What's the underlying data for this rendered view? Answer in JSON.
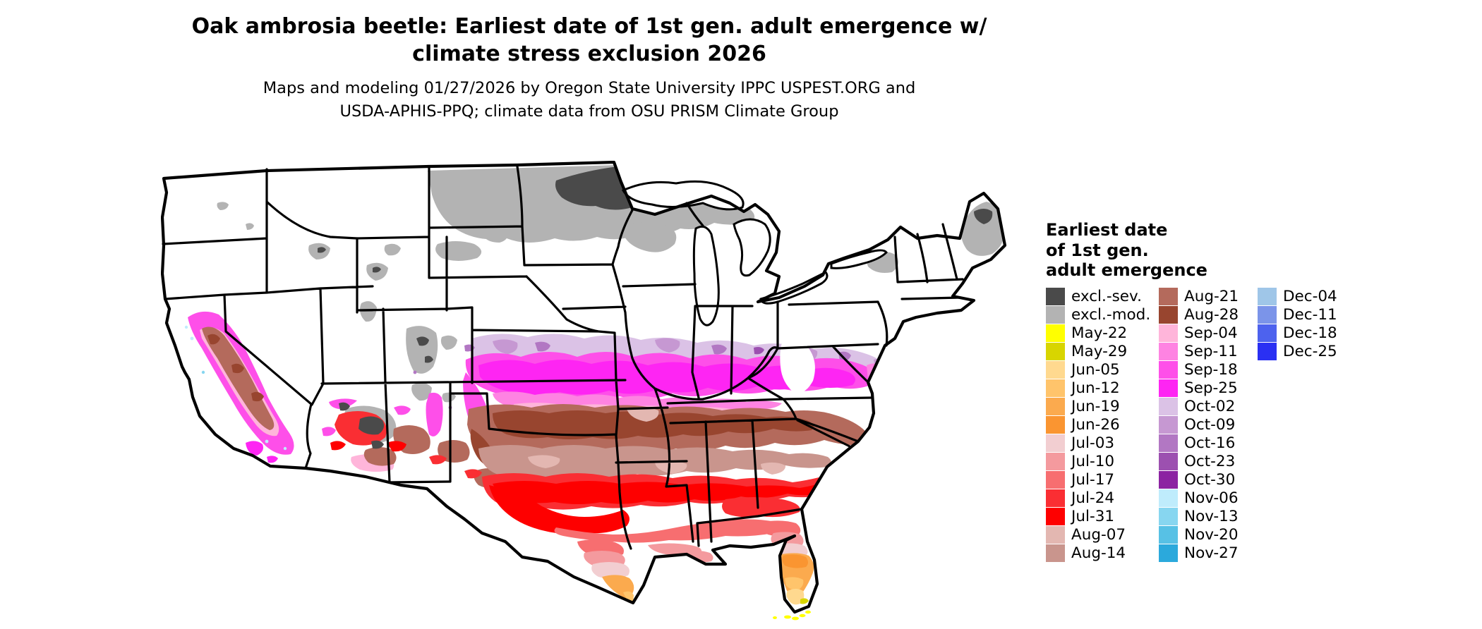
{
  "title": {
    "line1": "Oak ambrosia beetle: Earliest date of 1st gen. adult emergence w/",
    "line2": "climate stress exclusion 2026"
  },
  "subtitle": {
    "line1": "Maps and modeling 01/27/2026 by Oregon State University IPPC USPEST.ORG and",
    "line2": "USDA-APHIS-PPQ; climate data from OSU PRISM Climate Group"
  },
  "legend": {
    "title_lines": [
      "Earliest date",
      "of 1st gen.",
      "adult emergence"
    ],
    "columns": [
      {
        "entries": [
          {
            "label": "excl.-sev.",
            "color_key": "excl_sev"
          },
          {
            "label": "excl.-mod.",
            "color_key": "excl_mod"
          },
          {
            "label": "May-22",
            "color_key": "may22"
          },
          {
            "label": "May-29",
            "color_key": "may29"
          },
          {
            "label": "Jun-05",
            "color_key": "jun05"
          },
          {
            "label": "Jun-12",
            "color_key": "jun12"
          },
          {
            "label": "Jun-19",
            "color_key": "jun19"
          },
          {
            "label": "Jun-26",
            "color_key": "jun26"
          },
          {
            "label": "Jul-03",
            "color_key": "jul03"
          },
          {
            "label": "Jul-10",
            "color_key": "jul10"
          },
          {
            "label": "Jul-17",
            "color_key": "jul17"
          },
          {
            "label": "Jul-24",
            "color_key": "jul24"
          },
          {
            "label": "Jul-31",
            "color_key": "jul31"
          },
          {
            "label": "Aug-07",
            "color_key": "aug07"
          },
          {
            "label": "Aug-14",
            "color_key": "aug14"
          }
        ]
      },
      {
        "entries": [
          {
            "label": "Aug-21",
            "color_key": "aug21"
          },
          {
            "label": "Aug-28",
            "color_key": "aug28"
          },
          {
            "label": "Sep-04",
            "color_key": "sep04"
          },
          {
            "label": "Sep-11",
            "color_key": "sep11"
          },
          {
            "label": "Sep-18",
            "color_key": "sep18"
          },
          {
            "label": "Sep-25",
            "color_key": "sep25"
          },
          {
            "label": "Oct-02",
            "color_key": "oct02"
          },
          {
            "label": "Oct-09",
            "color_key": "oct09"
          },
          {
            "label": "Oct-16",
            "color_key": "oct16"
          },
          {
            "label": "Oct-23",
            "color_key": "oct23"
          },
          {
            "label": "Oct-30",
            "color_key": "oct30"
          },
          {
            "label": "Nov-06",
            "color_key": "nov06"
          },
          {
            "label": "Nov-13",
            "color_key": "nov13"
          },
          {
            "label": "Nov-20",
            "color_key": "nov20"
          },
          {
            "label": "Nov-27",
            "color_key": "nov27"
          }
        ]
      },
      {
        "entries": [
          {
            "label": "Dec-04",
            "color_key": "dec04"
          },
          {
            "label": "Dec-11",
            "color_key": "dec11"
          },
          {
            "label": "Dec-18",
            "color_key": "dec18"
          },
          {
            "label": "Dec-25",
            "color_key": "dec25"
          }
        ]
      }
    ]
  },
  "colors": {
    "excl_sev": "#4a4a4a",
    "excl_mod": "#b3b3b3",
    "may22": "#ffff00",
    "may29": "#d8d500",
    "jun05": "#ffd98f",
    "jun12": "#ffc46b",
    "jun19": "#fbaa4e",
    "jun26": "#fa9531",
    "jul03": "#f2ced1",
    "jul10": "#f49a9e",
    "jul17": "#f76e70",
    "jul24": "#fa2e33",
    "jul31": "#fe0000",
    "aug07": "#e3b7b1",
    "aug14": "#c9958d",
    "aug21": "#b46a5c",
    "aug28": "#98452f",
    "sep04": "#ffb5da",
    "sep11": "#fe83e2",
    "sep18": "#fe4fe9",
    "sep25": "#fe25f3",
    "oct02": "#dbc2e6",
    "oct09": "#c698d2",
    "oct16": "#b277c3",
    "oct23": "#9c50b0",
    "oct30": "#8c23a2",
    "nov06": "#bfecfc",
    "nov13": "#87d6f0",
    "nov20": "#57c1e5",
    "nov27": "#2ba9dc",
    "dec04": "#9fc6e8",
    "dec11": "#7b94e9",
    "dec18": "#4d62ee",
    "dec25": "#2a30f3",
    "border": "#000000",
    "land": "#ffffff"
  }
}
